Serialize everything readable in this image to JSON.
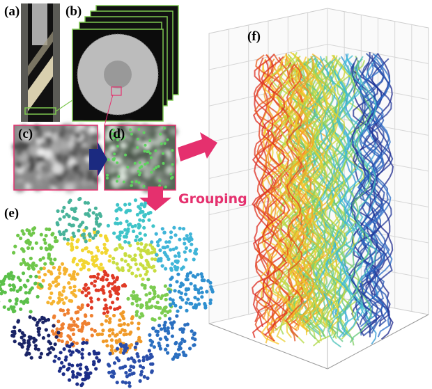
{
  "panels": {
    "a": "(a)",
    "b": "(b)",
    "c": "(c)",
    "d": "(d)",
    "e": "(e)",
    "f": "(f)"
  },
  "arrow_label": "Grouping"
}
